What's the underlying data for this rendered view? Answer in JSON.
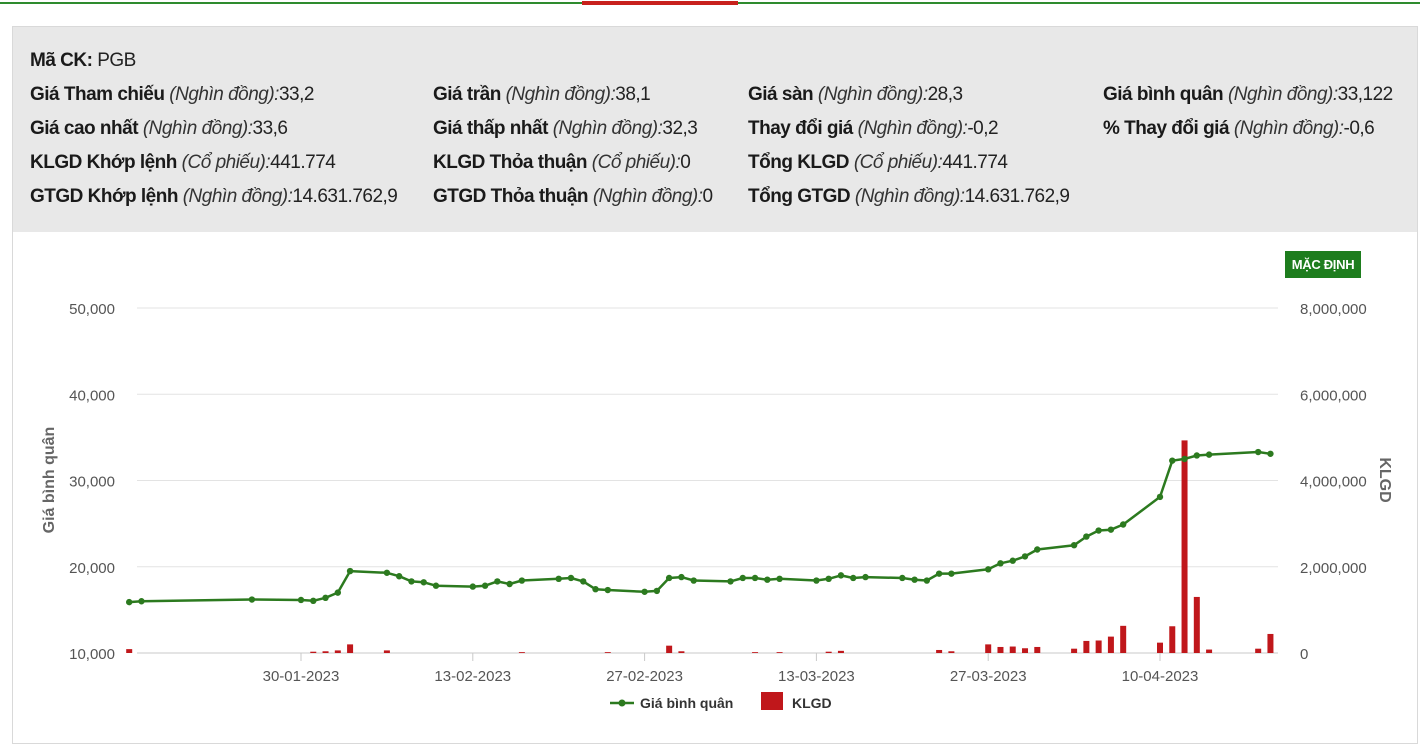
{
  "stock": {
    "code_label": "Mã CK:",
    "code_value": "PGB",
    "unit_thousand": "(Nghìn đồng):",
    "unit_shares": "(Cổ phiếu):",
    "rows": [
      [
        {
          "label": "Giá Tham chiếu",
          "unit": "(Nghìn đồng):",
          "value": "33,2"
        },
        {
          "label": "Giá trần",
          "unit": "(Nghìn đồng):",
          "value": "38,1"
        },
        {
          "label": "Giá sàn",
          "unit": "(Nghìn đồng):",
          "value": "28,3"
        },
        {
          "label": "Giá bình quân",
          "unit": "(Nghìn đồng):",
          "value": "33,122"
        }
      ],
      [
        {
          "label": "Giá cao nhất",
          "unit": "(Nghìn đồng):",
          "value": "33,6"
        },
        {
          "label": "Giá thấp nhất",
          "unit": "(Nghìn đồng):",
          "value": "32,3"
        },
        {
          "label": "Thay đổi giá",
          "unit": "(Nghìn đồng):",
          "value": "-0,2"
        },
        {
          "label": "% Thay đổi giá",
          "unit": "(Nghìn đồng):",
          "value": "-0,6"
        }
      ],
      [
        {
          "label": "KLGD Khớp lệnh",
          "unit": "(Cổ phiếu):",
          "value": "441.774"
        },
        {
          "label": "KLGD Thỏa thuận",
          "unit": "(Cổ phiếu):",
          "value": "0"
        },
        {
          "label": "Tổng KLGD",
          "unit": "(Cổ phiếu):",
          "value": "441.774"
        }
      ],
      [
        {
          "label": "GTGD Khớp lệnh",
          "unit": "(Nghìn đồng):",
          "value": "14.631.762,9"
        },
        {
          "label": "GTGD Thỏa thuận",
          "unit": "(Nghìn đồng):",
          "value": "0"
        },
        {
          "label": "Tổng GTGD",
          "unit": "(Nghìn đồng):",
          "value": "14.631.762,9"
        }
      ]
    ]
  },
  "toolbar": {
    "default_label": "MẶC ĐỊNH"
  },
  "colors": {
    "price_line": "#2c7a1f",
    "volume_bar": "#c0171b",
    "accent_green": "#1e7d1e",
    "accent_red": "#c8211d"
  },
  "chart_data": {
    "type": "line",
    "title": "",
    "xlabel": "",
    "ylabel": "Giá bình quân",
    "y2label": "KLGD",
    "ylim": [
      10000,
      50000
    ],
    "y2lim": [
      0,
      8000000
    ],
    "yticks": [
      "10,000",
      "20,000",
      "30,000",
      "40,000",
      "50,000"
    ],
    "y2ticks": [
      "0",
      "2,000,000",
      "4,000,000",
      "6,000,000",
      "8,000,000"
    ],
    "xticks": [
      "30-01-2023",
      "13-02-2023",
      "27-02-2023",
      "13-03-2023",
      "27-03-2023",
      "10-04-2023"
    ],
    "grid": true,
    "legend_position": "bottom-center",
    "series": [
      {
        "name": "Giá bình quân",
        "type": "line",
        "points": [
          [
            "2023-01-16",
            15900
          ],
          [
            "2023-01-17",
            16000
          ],
          [
            "2023-01-26",
            16200
          ],
          [
            "2023-01-30",
            16150
          ],
          [
            "2023-01-31",
            16050
          ],
          [
            "2023-02-01",
            16400
          ],
          [
            "2023-02-02",
            17000
          ],
          [
            "2023-02-03",
            19500
          ],
          [
            "2023-02-06",
            19300
          ],
          [
            "2023-02-07",
            18900
          ],
          [
            "2023-02-08",
            18300
          ],
          [
            "2023-02-09",
            18200
          ],
          [
            "2023-02-10",
            17800
          ],
          [
            "2023-02-13",
            17700
          ],
          [
            "2023-02-14",
            17800
          ],
          [
            "2023-02-15",
            18300
          ],
          [
            "2023-02-16",
            18000
          ],
          [
            "2023-02-17",
            18400
          ],
          [
            "2023-02-20",
            18600
          ],
          [
            "2023-02-21",
            18700
          ],
          [
            "2023-02-22",
            18300
          ],
          [
            "2023-02-23",
            17400
          ],
          [
            "2023-02-24",
            17300
          ],
          [
            "2023-02-27",
            17100
          ],
          [
            "2023-02-28",
            17200
          ],
          [
            "2023-03-01",
            18700
          ],
          [
            "2023-03-02",
            18800
          ],
          [
            "2023-03-03",
            18400
          ],
          [
            "2023-03-06",
            18300
          ],
          [
            "2023-03-07",
            18700
          ],
          [
            "2023-03-08",
            18700
          ],
          [
            "2023-03-09",
            18500
          ],
          [
            "2023-03-10",
            18600
          ],
          [
            "2023-03-13",
            18400
          ],
          [
            "2023-03-14",
            18600
          ],
          [
            "2023-03-15",
            19000
          ],
          [
            "2023-03-16",
            18700
          ],
          [
            "2023-03-17",
            18800
          ],
          [
            "2023-03-20",
            18700
          ],
          [
            "2023-03-21",
            18500
          ],
          [
            "2023-03-22",
            18400
          ],
          [
            "2023-03-23",
            19200
          ],
          [
            "2023-03-24",
            19200
          ],
          [
            "2023-03-27",
            19700
          ],
          [
            "2023-03-28",
            20400
          ],
          [
            "2023-03-29",
            20700
          ],
          [
            "2023-03-30",
            21200
          ],
          [
            "2023-03-31",
            22000
          ],
          [
            "2023-04-03",
            22500
          ],
          [
            "2023-04-04",
            23500
          ],
          [
            "2023-04-05",
            24200
          ],
          [
            "2023-04-06",
            24300
          ],
          [
            "2023-04-07",
            24900
          ],
          [
            "2023-04-10",
            28100
          ],
          [
            "2023-04-11",
            32300
          ],
          [
            "2023-04-12",
            32500
          ],
          [
            "2023-04-13",
            32900
          ],
          [
            "2023-04-14",
            33000
          ],
          [
            "2023-04-18",
            33300
          ],
          [
            "2023-04-19",
            33100
          ]
        ]
      },
      {
        "name": "KLGD",
        "type": "bar",
        "points": [
          [
            "2023-01-16",
            90000
          ],
          [
            "2023-01-31",
            30000
          ],
          [
            "2023-02-01",
            40000
          ],
          [
            "2023-02-02",
            60000
          ],
          [
            "2023-02-03",
            200000
          ],
          [
            "2023-02-06",
            60000
          ],
          [
            "2023-02-17",
            20000
          ],
          [
            "2023-02-24",
            20000
          ],
          [
            "2023-03-01",
            170000
          ],
          [
            "2023-03-02",
            40000
          ],
          [
            "2023-03-08",
            20000
          ],
          [
            "2023-03-10",
            20000
          ],
          [
            "2023-03-14",
            30000
          ],
          [
            "2023-03-15",
            50000
          ],
          [
            "2023-03-23",
            70000
          ],
          [
            "2023-03-24",
            40000
          ],
          [
            "2023-03-27",
            200000
          ],
          [
            "2023-03-28",
            140000
          ],
          [
            "2023-03-29",
            150000
          ],
          [
            "2023-03-30",
            110000
          ],
          [
            "2023-03-31",
            140000
          ],
          [
            "2023-04-03",
            100000
          ],
          [
            "2023-04-04",
            280000
          ],
          [
            "2023-04-05",
            290000
          ],
          [
            "2023-04-06",
            380000
          ],
          [
            "2023-04-07",
            630000
          ],
          [
            "2023-04-10",
            240000
          ],
          [
            "2023-04-11",
            620000
          ],
          [
            "2023-04-12",
            4930000
          ],
          [
            "2023-04-13",
            1300000
          ],
          [
            "2023-04-14",
            80000
          ],
          [
            "2023-04-18",
            100000
          ],
          [
            "2023-04-19",
            441774
          ]
        ]
      }
    ]
  }
}
